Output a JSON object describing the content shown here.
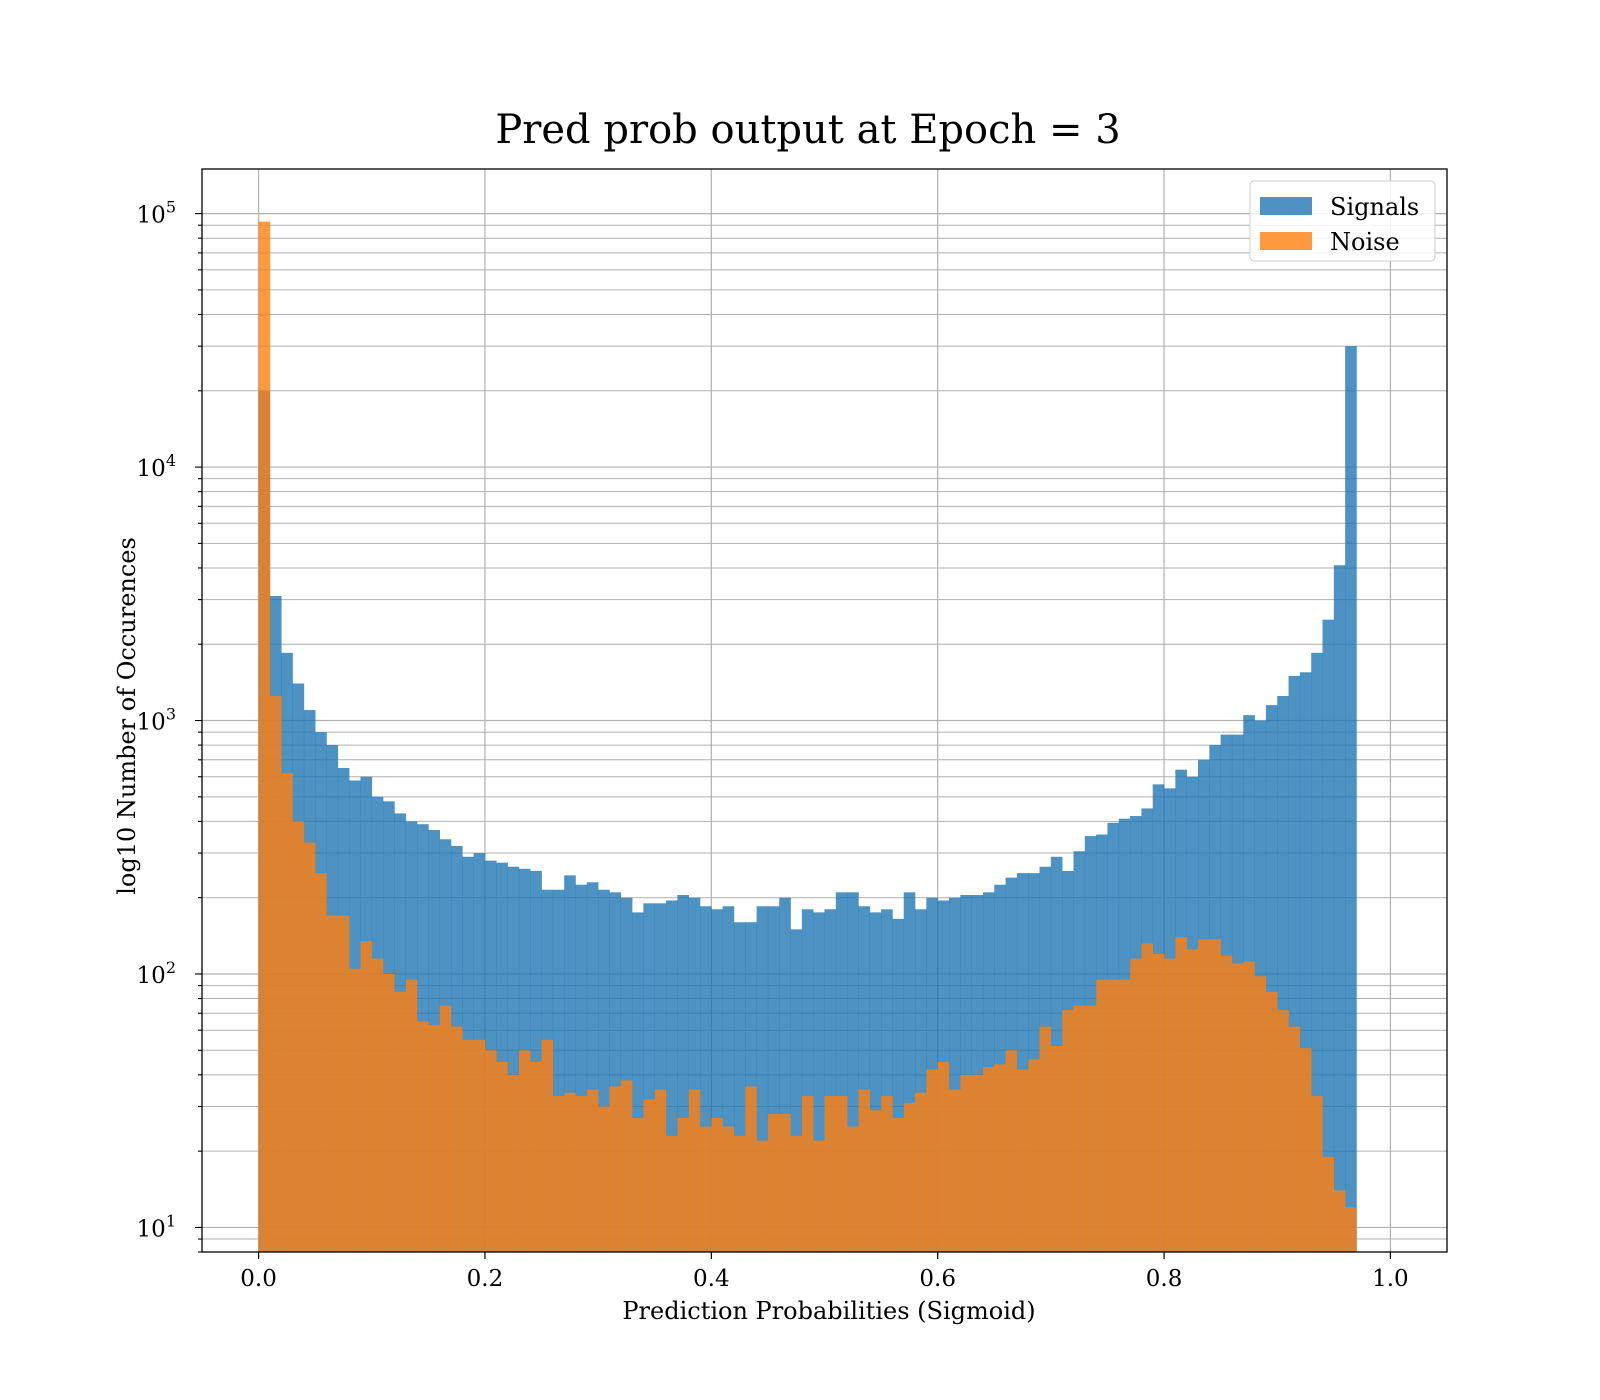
{
  "chart_data": {
    "type": "histogram",
    "title": "Pred prob output at Epoch = 3",
    "xlabel": "Prediction Probabilities (Sigmoid)",
    "ylabel": "log10 Number of Occurences",
    "x_scale": "linear",
    "y_scale": "log",
    "xlim": [
      -0.05,
      1.05
    ],
    "ylim": [
      8,
      150000
    ],
    "x_ticks": [
      0.0,
      0.2,
      0.4,
      0.6,
      0.8,
      1.0
    ],
    "x_tick_labels": [
      "0.0",
      "0.2",
      "0.4",
      "0.6",
      "0.8",
      "1.0"
    ],
    "y_ticks": [
      10,
      100,
      1000,
      10000,
      100000
    ],
    "y_tick_labels": [
      {
        "base": "10",
        "exp": "1"
      },
      {
        "base": "10",
        "exp": "2"
      },
      {
        "base": "10",
        "exp": "3"
      },
      {
        "base": "10",
        "exp": "4"
      },
      {
        "base": "10",
        "exp": "5"
      }
    ],
    "grid": true,
    "legend_position": "top-right",
    "bin_start": 0.0,
    "bin_width": 0.01,
    "series": [
      {
        "name": "Signals",
        "color": "#1f77b4",
        "opacity": 0.8,
        "values": [
          20000,
          3100,
          1850,
          1400,
          1100,
          900,
          800,
          650,
          580,
          600,
          500,
          480,
          430,
          400,
          390,
          370,
          340,
          320,
          290,
          300,
          280,
          275,
          265,
          260,
          255,
          215,
          215,
          245,
          225,
          230,
          215,
          210,
          200,
          175,
          190,
          190,
          195,
          205,
          200,
          185,
          180,
          185,
          160,
          160,
          185,
          185,
          200,
          150,
          180,
          175,
          180,
          210,
          210,
          185,
          175,
          180,
          165,
          210,
          180,
          200,
          195,
          200,
          205,
          205,
          210,
          225,
          240,
          250,
          250,
          265,
          290,
          255,
          305,
          350,
          355,
          395,
          410,
          420,
          450,
          560,
          540,
          640,
          600,
          700,
          800,
          880,
          880,
          1050,
          1000,
          1150,
          1250,
          1500,
          1550,
          1850,
          2500,
          4100,
          30000
        ]
      },
      {
        "name": "Noise",
        "color": "#ff7f0e",
        "opacity": 0.8,
        "values": [
          93000,
          1250,
          620,
          400,
          330,
          250,
          170,
          170,
          105,
          135,
          115,
          100,
          85,
          95,
          65,
          63,
          75,
          62,
          55,
          55,
          50,
          45,
          40,
          50,
          45,
          55,
          33,
          34,
          33,
          35,
          30,
          36,
          38,
          27,
          32,
          35,
          23,
          27,
          35,
          25,
          27,
          25,
          23,
          36,
          22,
          28,
          28,
          23,
          33,
          22,
          33,
          33,
          25,
          35,
          29,
          33,
          27,
          31,
          34,
          42,
          45,
          35,
          40,
          40,
          43,
          44,
          50,
          42,
          46,
          62,
          52,
          72,
          75,
          75,
          95,
          95,
          95,
          115,
          132,
          120,
          115,
          140,
          125,
          137,
          137,
          118,
          110,
          112,
          98,
          85,
          72,
          62,
          51,
          33,
          19,
          14,
          12
        ]
      }
    ]
  }
}
